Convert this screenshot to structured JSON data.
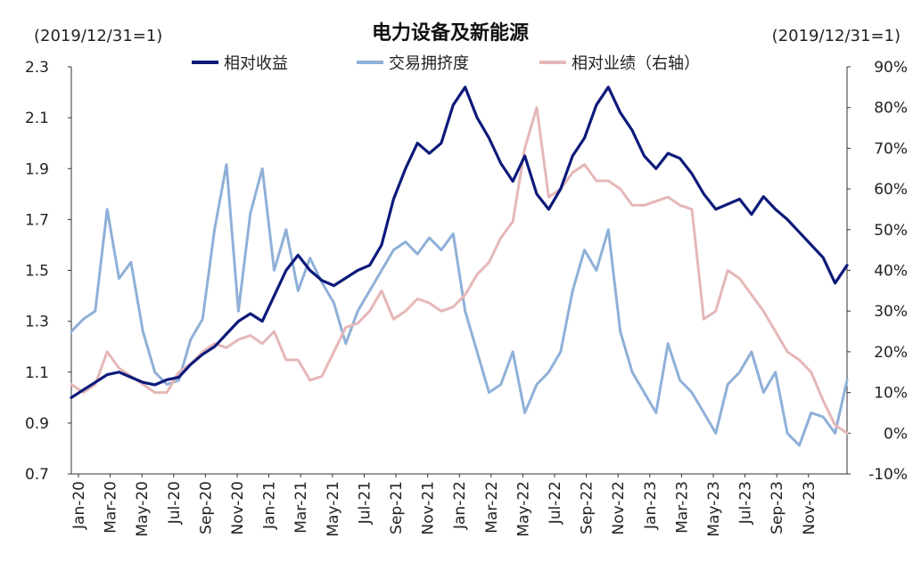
{
  "chart_data": {
    "type": "line",
    "title": "电力设备及新能源",
    "left_note": "(2019/12/31=1)",
    "right_note": "(2019/12/31=1)",
    "ylim": [
      0.7,
      2.3
    ],
    "y_ticks": [
      "2.3",
      "2.1",
      "1.9",
      "1.7",
      "1.5",
      "1.3",
      "1.1",
      "0.9",
      "0.7"
    ],
    "y2lim": [
      -10,
      90
    ],
    "y2_ticks": [
      "90%",
      "80%",
      "70%",
      "60%",
      "50%",
      "40%",
      "30%",
      "20%",
      "10%",
      "0%",
      "-10%"
    ],
    "x_ticks": [
      "Jan-20",
      "Mar-20",
      "May-20",
      "Jul-20",
      "Sep-20",
      "Nov-20",
      "Jan-21",
      "Mar-21",
      "May-21",
      "Jul-21",
      "Sep-21",
      "Nov-21",
      "Jan-22",
      "Mar-22",
      "May-22",
      "Jul-22",
      "Sep-22",
      "Nov-22",
      "Jan-23",
      "Mar-23",
      "May-23",
      "Jul-23",
      "Sep-23",
      "Nov-23"
    ],
    "grid": false,
    "legend_position": "top",
    "series": [
      {
        "name": "相对收益",
        "axis": "left",
        "color": "#0d1a7a",
        "values": [
          1.0,
          1.03,
          1.06,
          1.09,
          1.1,
          1.08,
          1.06,
          1.05,
          1.07,
          1.08,
          1.13,
          1.17,
          1.2,
          1.25,
          1.3,
          1.33,
          1.3,
          1.4,
          1.5,
          1.56,
          1.5,
          1.46,
          1.44,
          1.47,
          1.5,
          1.52,
          1.6,
          1.78,
          1.9,
          2.0,
          1.96,
          2.0,
          2.15,
          2.22,
          2.1,
          2.02,
          1.92,
          1.85,
          1.95,
          1.8,
          1.74,
          1.82,
          1.95,
          2.02,
          2.15,
          2.22,
          2.12,
          2.05,
          1.95,
          1.9,
          1.96,
          1.94,
          1.88,
          1.8,
          1.74,
          1.76,
          1.78,
          1.72,
          1.79,
          1.74,
          1.7,
          1.65,
          1.6,
          1.55,
          1.45,
          1.52
        ]
      },
      {
        "name": "交易拥挤度",
        "axis": "right",
        "color": "#8fb0d8",
        "values": [
          25,
          28,
          30,
          55,
          38,
          42,
          25,
          15,
          12,
          13,
          23,
          28,
          50,
          66,
          30,
          54,
          65,
          40,
          50,
          35,
          43,
          37,
          32,
          22,
          30,
          35,
          40,
          45,
          47,
          44,
          48,
          45,
          49,
          30,
          20,
          10,
          12,
          20,
          5,
          12,
          15,
          20,
          35,
          45,
          40,
          50,
          25,
          15,
          10,
          5,
          22,
          13,
          10,
          5,
          0,
          12,
          15,
          20,
          10,
          15,
          0,
          -3,
          5,
          4,
          0,
          13
        ]
      },
      {
        "name": "相对业绩（右轴）",
        "axis": "right",
        "color": "#e6b7b7",
        "values": [
          12,
          10,
          12,
          20,
          16,
          14,
          12,
          10,
          10,
          15,
          17,
          20,
          22,
          21,
          23,
          24,
          22,
          25,
          18,
          18,
          13,
          14,
          20,
          26,
          27,
          30,
          35,
          28,
          30,
          33,
          32,
          30,
          31,
          34,
          39,
          42,
          48,
          52,
          70,
          80,
          58,
          60,
          64,
          66,
          62,
          62,
          60,
          56,
          56,
          57,
          58,
          56,
          55,
          28,
          30,
          40,
          38,
          34,
          30,
          25,
          20,
          18,
          15,
          8,
          2,
          0
        ]
      }
    ]
  }
}
